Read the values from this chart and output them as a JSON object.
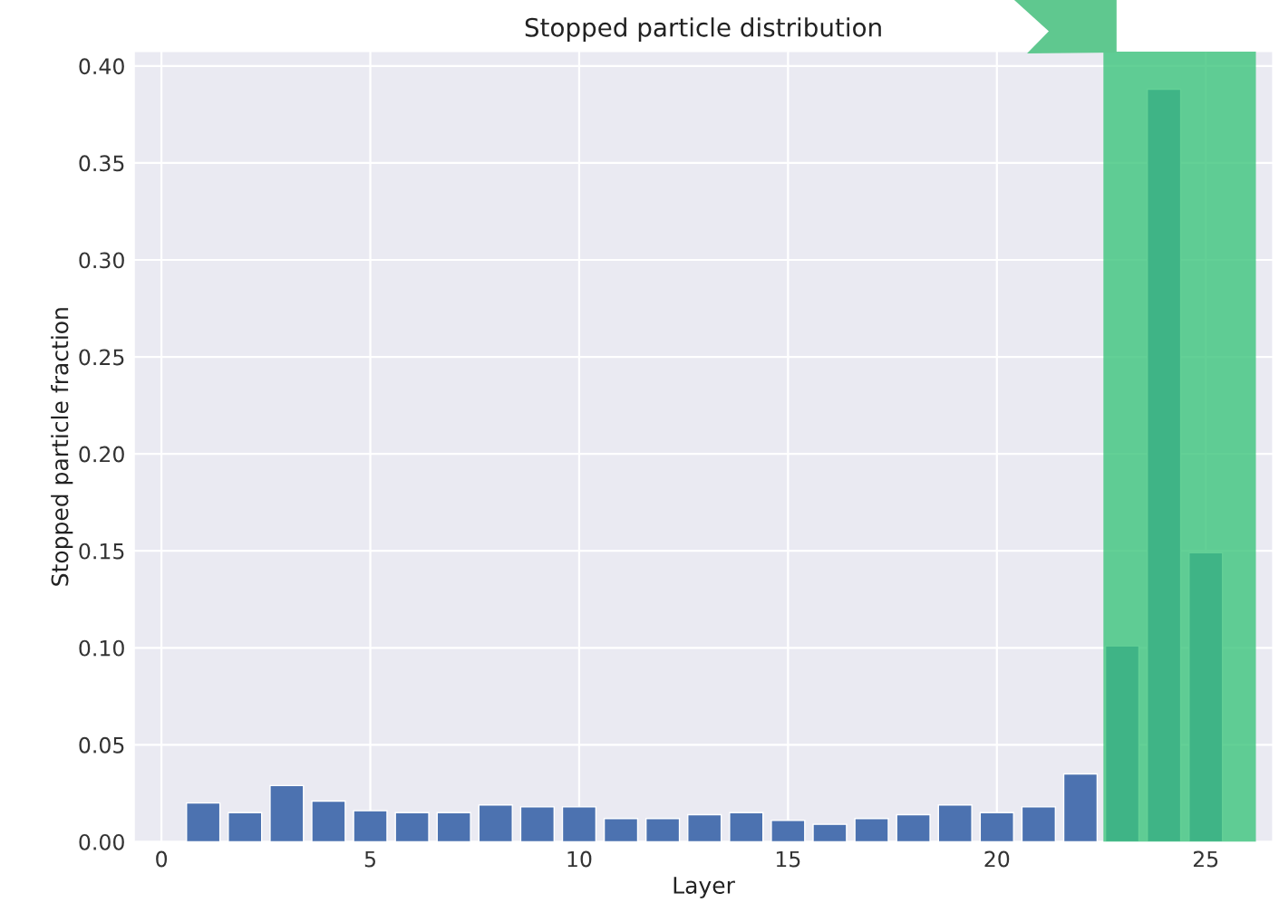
{
  "chart_data": {
    "type": "bar",
    "title": "Stopped particle distribution",
    "xlabel": "Layer",
    "ylabel": "Stopped particle fraction",
    "x": [
      1,
      2,
      3,
      4,
      5,
      6,
      7,
      8,
      9,
      10,
      11,
      12,
      13,
      14,
      15,
      16,
      17,
      18,
      19,
      20,
      21,
      22,
      23,
      24,
      25
    ],
    "values": [
      0.02,
      0.015,
      0.029,
      0.021,
      0.016,
      0.015,
      0.015,
      0.019,
      0.018,
      0.018,
      0.012,
      0.012,
      0.014,
      0.015,
      0.011,
      0.009,
      0.012,
      0.014,
      0.019,
      0.015,
      0.018,
      0.035,
      0.101,
      0.388,
      0.149
    ],
    "color": "#4c72b0",
    "xlim": [
      -0.65,
      26.6
    ],
    "xticks": [
      0,
      5,
      10,
      15,
      20,
      25
    ],
    "ylim": [
      0,
      0.4074
    ],
    "yticks": [
      {
        "value": 0,
        "label": "0.00"
      },
      {
        "value": 0.05,
        "label": "0.05"
      },
      {
        "value": 0.1,
        "label": "0.10"
      },
      {
        "value": 0.15,
        "label": "0.15"
      },
      {
        "value": 0.2,
        "label": "0.20"
      },
      {
        "value": 0.25,
        "label": "0.25"
      },
      {
        "value": 0.3,
        "label": "0.30"
      },
      {
        "value": 0.35,
        "label": "0.35"
      },
      {
        "value": 0.4,
        "label": "0.40"
      }
    ],
    "bands": [
      {
        "axis": "x",
        "from": 22.55,
        "to": 26.2,
        "color": "#3cc47c"
      }
    ],
    "grid": true
  }
}
